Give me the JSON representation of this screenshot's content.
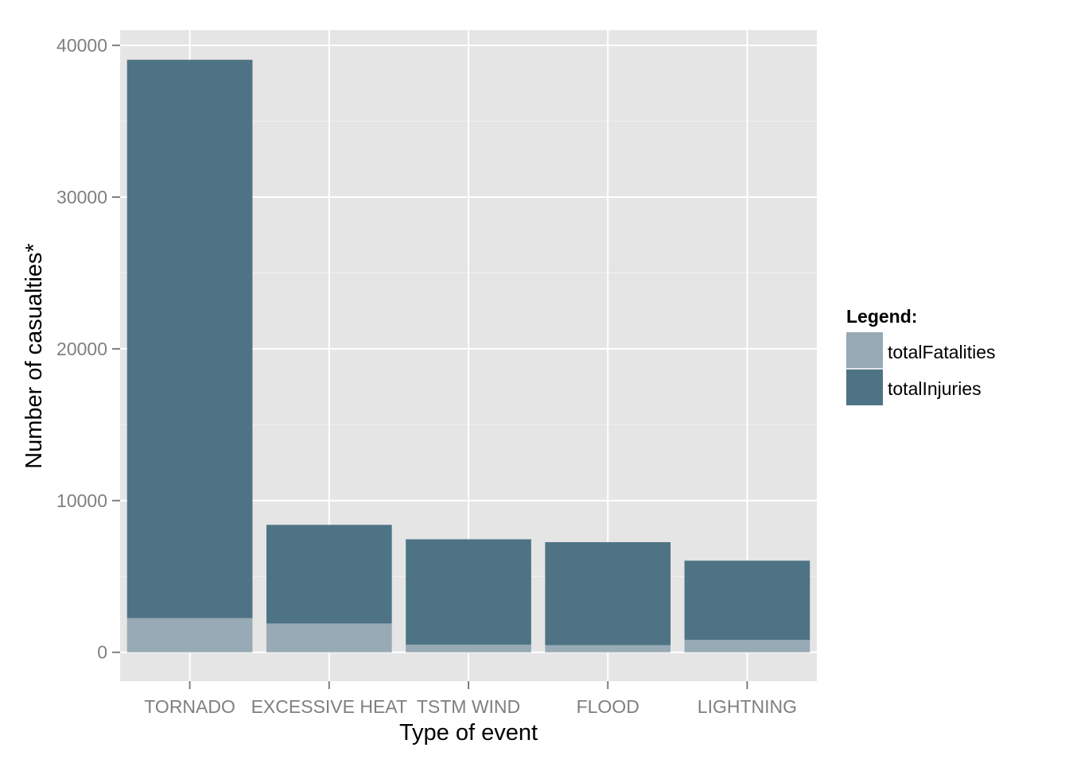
{
  "chart_data": {
    "type": "bar",
    "stacked": true,
    "categories": [
      "TORNADO",
      "EXCESSIVE HEAT",
      "TSTM WIND",
      "FLOOD",
      "LIGHTNING"
    ],
    "series": [
      {
        "name": "totalFatalities",
        "color": "#97aab5",
        "values": [
          2250,
          1900,
          500,
          470,
          820
        ]
      },
      {
        "name": "totalInjuries",
        "color": "#4e7385",
        "values": [
          36800,
          6500,
          6950,
          6790,
          5220
        ]
      }
    ],
    "title": "",
    "xlabel": "Type of event",
    "ylabel": "Number of casualties*",
    "ylim": [
      -1900,
      41000
    ],
    "yticks": [
      0,
      10000,
      20000,
      30000,
      40000
    ],
    "ytick_labels": [
      "0",
      "10000",
      "20000",
      "30000",
      "40000"
    ],
    "grid": true,
    "panel_background": "#e5e5e5",
    "legend": {
      "title": "Legend:",
      "position": "right",
      "items": [
        "totalFatalities",
        "totalInjuries"
      ]
    }
  }
}
